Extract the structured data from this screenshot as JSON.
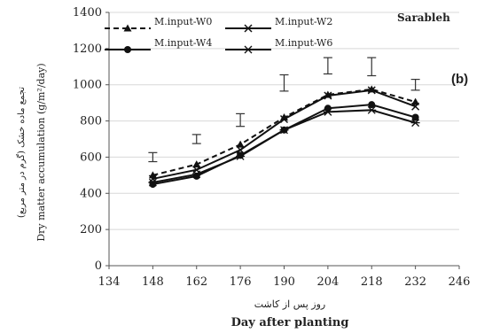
{
  "chart_data": {
    "type": "line",
    "site_label": "Sarableh",
    "panel_label": "(b)",
    "xlabel": "Day after planting",
    "xlabel_fa": "روز پس از کاشت",
    "ylabel": "Dry matter accumulation (g/m²/day)",
    "ylabel_fa": "تجمع ماده خشک (گرم در متر مربع)",
    "xlim": [
      134,
      246
    ],
    "ylim": [
      0,
      1400
    ],
    "x_ticks": [
      134,
      148,
      162,
      176,
      190,
      204,
      218,
      232,
      246
    ],
    "y_ticks": [
      0,
      200,
      400,
      600,
      800,
      1000,
      1200,
      1400
    ],
    "x": [
      148,
      162,
      176,
      190,
      204,
      218,
      232
    ],
    "series": [
      {
        "name": "M.input-W0",
        "marker": "triangle",
        "dash": true,
        "values": [
          500,
          560,
          670,
          820,
          945,
          975,
          905
        ]
      },
      {
        "name": "M.input-W2",
        "marker": "x",
        "dash": false,
        "values": [
          480,
          530,
          640,
          810,
          940,
          970,
          880
        ]
      },
      {
        "name": "M.input-W4",
        "marker": "circle",
        "dash": false,
        "values": [
          450,
          495,
          610,
          750,
          870,
          890,
          820
        ]
      },
      {
        "name": "M.input-W6",
        "marker": "star",
        "dash": false,
        "values": [
          460,
          505,
          605,
          750,
          850,
          860,
          790
        ]
      }
    ],
    "error_bars": [
      {
        "x": 148,
        "center": 600,
        "half": 25
      },
      {
        "x": 162,
        "center": 700,
        "half": 25
      },
      {
        "x": 176,
        "center": 805,
        "half": 35
      },
      {
        "x": 190,
        "center": 1010,
        "half": 45
      },
      {
        "x": 204,
        "center": 1105,
        "half": 45
      },
      {
        "x": 218,
        "center": 1100,
        "half": 50
      },
      {
        "x": 232,
        "center": 1000,
        "half": 30
      }
    ]
  }
}
